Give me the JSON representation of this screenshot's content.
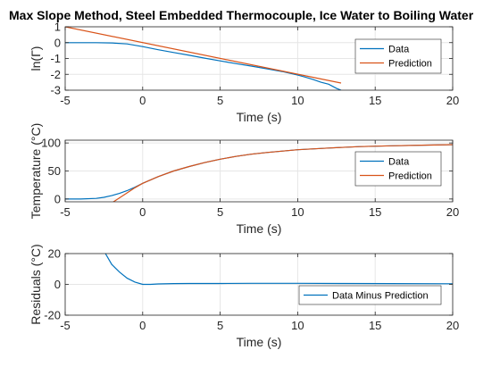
{
  "title": "Max Slope Method, Steel Embedded Thermocouple, Ice Water to Boiling Water",
  "colors": {
    "data": "#0072BD",
    "prediction": "#D95319",
    "grid": "#e6e6e6",
    "axis": "#262626"
  },
  "chart_data": [
    {
      "type": "line",
      "ylabel": "ln(Γ)",
      "xlabel": "Time (s)",
      "xlim": [
        -5,
        20
      ],
      "ylim": [
        -3,
        1
      ],
      "xticks": [
        -5,
        0,
        5,
        10,
        15,
        20
      ],
      "yticks": [
        -3,
        -2,
        -1,
        0,
        1
      ],
      "grid": true,
      "legend": "top-right",
      "series": [
        {
          "name": "Data",
          "color": "#0072BD",
          "x": [
            -5,
            -3,
            -2,
            -1,
            0,
            1,
            2,
            3,
            4,
            5,
            6,
            7,
            8,
            9,
            10,
            10.5,
            11,
            11.5,
            12,
            12.5,
            12.8
          ],
          "y": [
            0,
            0,
            -0.02,
            -0.08,
            -0.25,
            -0.45,
            -0.62,
            -0.8,
            -0.98,
            -1.15,
            -1.32,
            -1.48,
            -1.65,
            -1.82,
            -2.05,
            -2.18,
            -2.33,
            -2.5,
            -2.62,
            -2.88,
            -3.0
          ]
        },
        {
          "name": "Prediction",
          "color": "#D95319",
          "x": [
            -5,
            12.8
          ],
          "y": [
            1.0,
            -2.55
          ]
        }
      ]
    },
    {
      "type": "line",
      "ylabel": "Temperature (°C)",
      "xlabel": "Time (s)",
      "xlim": [
        -5,
        20
      ],
      "ylim": [
        -5,
        105
      ],
      "xticks": [
        -5,
        0,
        5,
        10,
        15,
        20
      ],
      "yticks": [
        0,
        50,
        100
      ],
      "grid": true,
      "legend": "top-right",
      "series": [
        {
          "name": "Data",
          "color": "#0072BD",
          "x": [
            -5,
            -4,
            -3,
            -2.5,
            -2,
            -1.5,
            -1,
            -0.5,
            0,
            1,
            2,
            3,
            4,
            5,
            6,
            7,
            8,
            10,
            12,
            14,
            16,
            18,
            20
          ],
          "y": [
            0,
            0,
            1,
            3,
            6,
            10,
            15,
            21,
            28,
            40,
            50,
            58,
            65,
            71,
            76,
            80,
            83,
            88,
            91,
            93.5,
            95,
            96,
            97
          ]
        },
        {
          "name": "Prediction",
          "color": "#D95319",
          "x": [
            -2,
            -1.5,
            -1,
            -0.5,
            0,
            1,
            2,
            3,
            4,
            5,
            6,
            7,
            8,
            10,
            12,
            14,
            16,
            18,
            20
          ],
          "y": [
            -7,
            2,
            11,
            20,
            28,
            40,
            50,
            58,
            65,
            71,
            76,
            80,
            83,
            88,
            91,
            93.5,
            95,
            96,
            97
          ]
        }
      ]
    },
    {
      "type": "line",
      "ylabel": "Residuals (°C)",
      "xlabel": "Time (s)",
      "xlim": [
        -5,
        20
      ],
      "ylim": [
        -20,
        20
      ],
      "xticks": [
        -5,
        0,
        5,
        10,
        15,
        20
      ],
      "yticks": [
        -20,
        0,
        20
      ],
      "grid": true,
      "legend": "bottom-right",
      "series": [
        {
          "name": "Data Minus Prediction",
          "color": "#0072BD",
          "x": [
            -2.4,
            -2,
            -1.5,
            -1,
            -0.5,
            0,
            0.5,
            1,
            2,
            3,
            5,
            7,
            10,
            13,
            16,
            20
          ],
          "y": [
            20,
            13,
            8,
            4,
            1.5,
            0,
            0,
            0.3,
            0.5,
            0.6,
            0.6,
            0.7,
            0.7,
            0.6,
            0.5,
            0.4
          ]
        }
      ]
    }
  ]
}
